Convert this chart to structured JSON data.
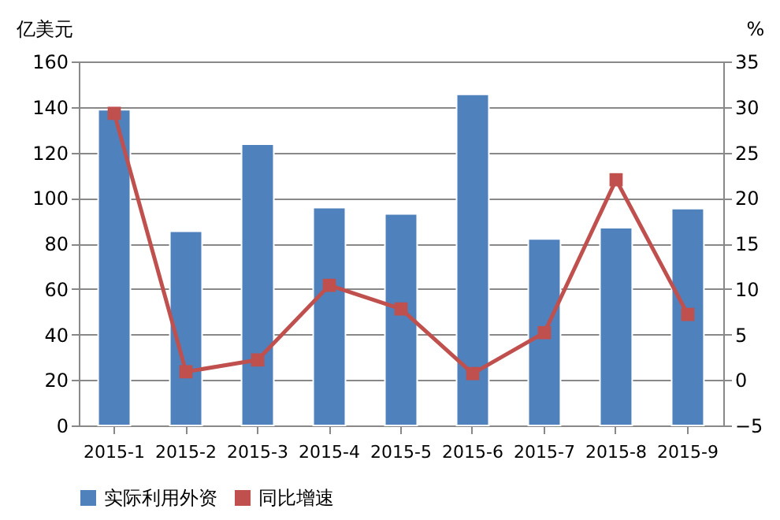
{
  "chart_data": {
    "type": "bar",
    "categories": [
      "2015-1",
      "2015-2",
      "2015-3",
      "2015-4",
      "2015-5",
      "2015-6",
      "2015-7",
      "2015-8",
      "2015-9"
    ],
    "series": [
      {
        "name": "实际利用外资",
        "color": "#4f81bd",
        "values": [
          138.8,
          85.4,
          123.6,
          95.8,
          93,
          145.5,
          82,
          86.9,
          95.3
        ]
      },
      {
        "name": "同比增速",
        "type": "line",
        "axis": "y2",
        "color": "#c0504d",
        "marker": "square",
        "values": [
          29.3,
          0.9,
          2.2,
          10.4,
          7.8,
          0.7,
          5.2,
          22,
          7.2
        ]
      }
    ],
    "ylabel": "亿美元",
    "y2label": "%",
    "ylim": [
      0,
      160
    ],
    "yticks": [
      0,
      20,
      40,
      60,
      80,
      100,
      120,
      140,
      160
    ],
    "y2lim": [
      -5,
      35
    ],
    "y2ticks": [
      -5,
      0,
      5,
      10,
      15,
      20,
      25,
      30,
      35
    ],
    "grid": "y",
    "legend": "bottom"
  }
}
